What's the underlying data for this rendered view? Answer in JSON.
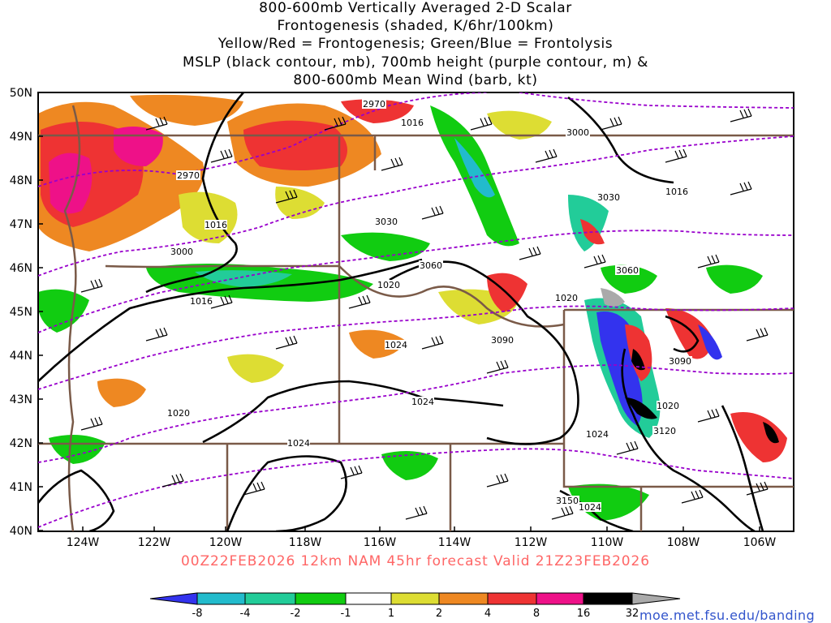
{
  "title": {
    "lines": [
      "800-600mb Vertically Averaged 2-D Scalar",
      "Frontogenesis (shaded, K/6hr/100km)",
      "Yellow/Red = Frontogenesis;  Green/Blue = Frontolysis",
      "MSLP (black contour, mb), 700mb height (purple contour, m) &",
      "800-600mb Mean Wind (barb, kt)"
    ]
  },
  "axes": {
    "lat_labels": [
      "50N",
      "49N",
      "48N",
      "47N",
      "46N",
      "45N",
      "44N",
      "43N",
      "42N",
      "41N",
      "40N"
    ],
    "lon_labels": [
      "124W",
      "122W",
      "120W",
      "118W",
      "116W",
      "114W",
      "112W",
      "110W",
      "108W",
      "106W"
    ]
  },
  "contour_labels": {
    "mslp": [
      "1016",
      "1016",
      "1016",
      "1016",
      "1020",
      "1020",
      "1020",
      "1020",
      "1024",
      "1024",
      "1024",
      "1024",
      "1024"
    ],
    "height": [
      "2970",
      "2970",
      "3000",
      "3000",
      "3030",
      "3030",
      "3060",
      "3060",
      "3090",
      "3090",
      "3120",
      "3150"
    ]
  },
  "valid_text": "00Z22FEB2026 12km NAM 45hr forecast Valid 21Z23FEB2026",
  "colorbar": {
    "labels": [
      "-8",
      "-4",
      "-2",
      "-1",
      "1",
      "2",
      "4",
      "8",
      "16",
      "32"
    ],
    "colors": [
      "#3333ee",
      "#22bbcc",
      "#22cc99",
      "#11cc11",
      "#ffffff",
      "#dddd33",
      "#ee8822",
      "#ee3333",
      "#ee1188",
      "#000000",
      "#aaaaaa"
    ]
  },
  "credit": "moe.met.fsu.edu/banding",
  "colors": {
    "mslp": "#000000",
    "height": "#9900cc",
    "borders": "#7a5a48",
    "valid": "#ff6666"
  }
}
